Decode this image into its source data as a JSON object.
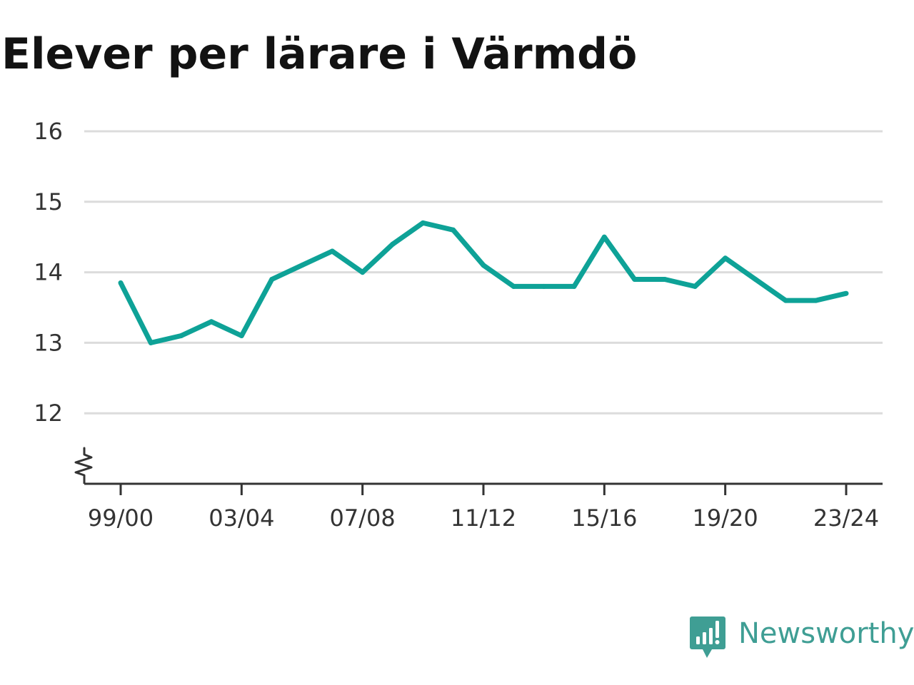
{
  "chart_data": {
    "type": "line",
    "title": "Elever per lärare i Värmdö",
    "xlabel": "",
    "ylabel": "",
    "x": [
      "99/00",
      "00/01",
      "01/02",
      "02/03",
      "03/04",
      "04/05",
      "05/06",
      "06/07",
      "07/08",
      "08/09",
      "09/10",
      "10/11",
      "11/12",
      "12/13",
      "13/14",
      "14/15",
      "15/16",
      "16/17",
      "17/18",
      "18/19",
      "19/20",
      "20/21",
      "21/22",
      "22/23",
      "23/24"
    ],
    "x_tick_labels": [
      "99/00",
      "03/04",
      "07/08",
      "11/12",
      "15/16",
      "19/20",
      "23/24"
    ],
    "y_ticks": [
      12,
      13,
      14,
      15,
      16
    ],
    "ylim": [
      11.0,
      16.0
    ],
    "axis_break": true,
    "grid": true,
    "series": [
      {
        "values": [
          13.85,
          13.0,
          13.1,
          13.3,
          13.1,
          13.9,
          14.1,
          14.3,
          14.0,
          14.4,
          14.7,
          14.6,
          14.1,
          13.8,
          13.8,
          13.8,
          14.5,
          13.9,
          13.9,
          13.8,
          14.2,
          13.9,
          13.6,
          13.6,
          13.7
        ],
        "color": "#0ea297"
      }
    ]
  },
  "brand": {
    "name": "Newsworthy",
    "color": "#3f9e94",
    "icon": "bar-chart-speech-bubble-icon"
  }
}
